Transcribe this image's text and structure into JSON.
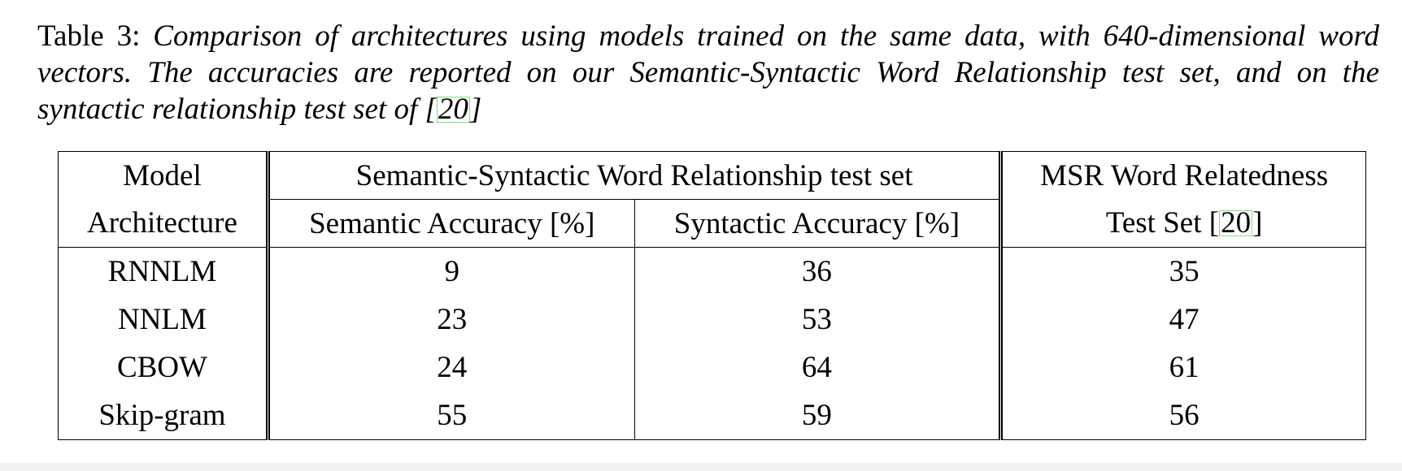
{
  "caption": {
    "label": "Table 3:",
    "text_before_cite": "Comparison of architectures using models trained on the same data, with 640-dimensional word vectors.  The accuracies are reported on our Semantic-Syntactic Word Relationship test set, and on the syntactic relationship test set of [",
    "cite": "20",
    "text_after_cite": "]"
  },
  "table": {
    "header": {
      "model_line1": "Model",
      "model_line2": "Architecture",
      "group_label": "Semantic-Syntactic Word Relationship test set",
      "semantic_label": "Semantic Accuracy [%]",
      "syntactic_label": "Syntactic Accuracy [%]",
      "msr_line1": "MSR Word Relatedness",
      "msr_line2_before_cite": "Test Set [",
      "msr_cite": "20",
      "msr_line2_after_cite": "]"
    },
    "rows": [
      {
        "model": "RNNLM",
        "semantic": "9",
        "syntactic": "36",
        "msr": "35"
      },
      {
        "model": "NNLM",
        "semantic": "23",
        "syntactic": "53",
        "msr": "47"
      },
      {
        "model": "CBOW",
        "semantic": "24",
        "syntactic": "64",
        "msr": "61"
      },
      {
        "model": "Skip-gram",
        "semantic": "55",
        "syntactic": "59",
        "msr": "56"
      }
    ]
  }
}
